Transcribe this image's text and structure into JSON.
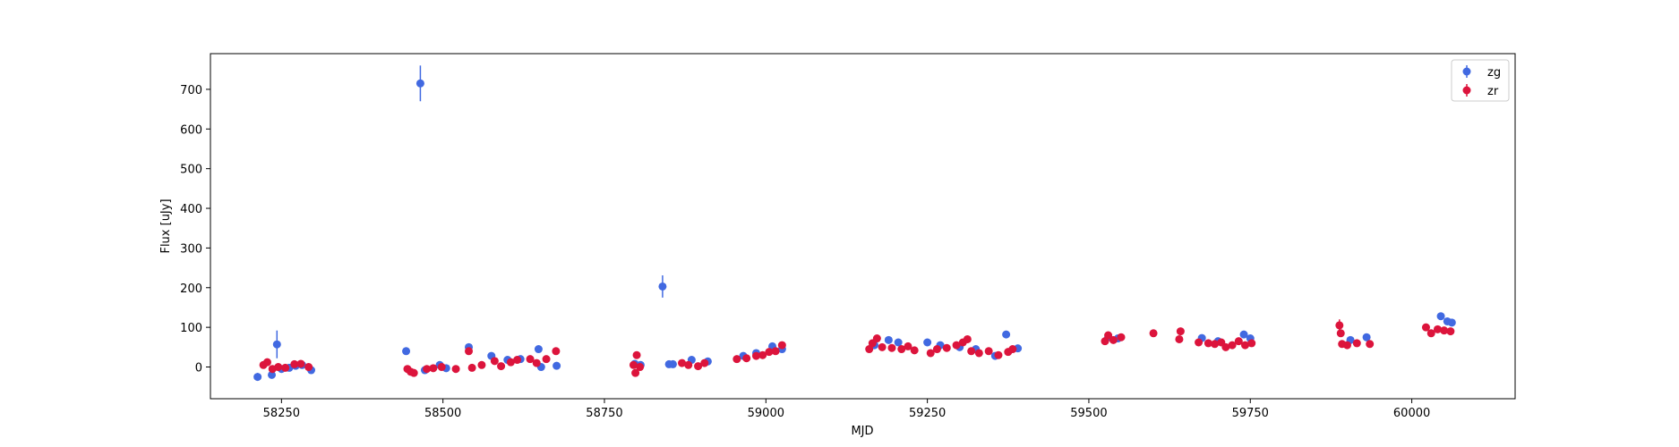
{
  "chart_data": {
    "type": "scatter",
    "title": "",
    "xlabel": "MJD",
    "ylabel": "Flux [uJy]",
    "xlim": [
      58140,
      60160
    ],
    "ylim": [
      -80,
      790
    ],
    "xticks": [
      58250,
      58500,
      58750,
      59000,
      59250,
      59500,
      59750,
      60000
    ],
    "yticks": [
      0,
      100,
      200,
      300,
      400,
      500,
      600,
      700
    ],
    "grid": false,
    "legend_position": "top-right",
    "series": [
      {
        "name": "zg",
        "color": "#4169e1",
        "points": [
          {
            "x": 58213,
            "y": -25,
            "err": 10
          },
          {
            "x": 58235,
            "y": -20,
            "err": 8
          },
          {
            "x": 58243,
            "y": 57,
            "err": 35
          },
          {
            "x": 58250,
            "y": -5,
            "err": 6
          },
          {
            "x": 58262,
            "y": -2,
            "err": 6
          },
          {
            "x": 58272,
            "y": 3,
            "err": 6
          },
          {
            "x": 58282,
            "y": 5,
            "err": 5
          },
          {
            "x": 58296,
            "y": -8,
            "err": 6
          },
          {
            "x": 58443,
            "y": 40,
            "err": 6
          },
          {
            "x": 58465,
            "y": 715,
            "err": 45
          },
          {
            "x": 58472,
            "y": -8,
            "err": 6
          },
          {
            "x": 58495,
            "y": 5,
            "err": 5
          },
          {
            "x": 58505,
            "y": -3,
            "err": 5
          },
          {
            "x": 58540,
            "y": 50,
            "err": 8
          },
          {
            "x": 58575,
            "y": 28,
            "err": 5
          },
          {
            "x": 58600,
            "y": 18,
            "err": 5
          },
          {
            "x": 58620,
            "y": 20,
            "err": 5
          },
          {
            "x": 58648,
            "y": 45,
            "err": 6
          },
          {
            "x": 58652,
            "y": 0,
            "err": 5
          },
          {
            "x": 58676,
            "y": 3,
            "err": 5
          },
          {
            "x": 58797,
            "y": 8,
            "err": 5
          },
          {
            "x": 58806,
            "y": 5,
            "err": 5
          },
          {
            "x": 58840,
            "y": 203,
            "err": 28
          },
          {
            "x": 58850,
            "y": 7,
            "err": 5
          },
          {
            "x": 58856,
            "y": 7,
            "err": 5
          },
          {
            "x": 58885,
            "y": 18,
            "err": 5
          },
          {
            "x": 58910,
            "y": 14,
            "err": 5
          },
          {
            "x": 58965,
            "y": 28,
            "err": 5
          },
          {
            "x": 58985,
            "y": 35,
            "err": 5
          },
          {
            "x": 59010,
            "y": 52,
            "err": 5
          },
          {
            "x": 59025,
            "y": 45,
            "err": 5
          },
          {
            "x": 59168,
            "y": 55,
            "err": 5
          },
          {
            "x": 59190,
            "y": 68,
            "err": 5
          },
          {
            "x": 59205,
            "y": 62,
            "err": 5
          },
          {
            "x": 59250,
            "y": 62,
            "err": 5
          },
          {
            "x": 59270,
            "y": 55,
            "err": 5
          },
          {
            "x": 59300,
            "y": 50,
            "err": 5
          },
          {
            "x": 59325,
            "y": 45,
            "err": 5
          },
          {
            "x": 59355,
            "y": 28,
            "err": 5
          },
          {
            "x": 59372,
            "y": 82,
            "err": 6
          },
          {
            "x": 59390,
            "y": 47,
            "err": 5
          },
          {
            "x": 59530,
            "y": 75,
            "err": 5
          },
          {
            "x": 59545,
            "y": 72,
            "err": 5
          },
          {
            "x": 59675,
            "y": 73,
            "err": 5
          },
          {
            "x": 59700,
            "y": 65,
            "err": 5
          },
          {
            "x": 59740,
            "y": 82,
            "err": 6
          },
          {
            "x": 59750,
            "y": 72,
            "err": 5
          },
          {
            "x": 59905,
            "y": 68,
            "err": 5
          },
          {
            "x": 59930,
            "y": 75,
            "err": 5
          },
          {
            "x": 60045,
            "y": 128,
            "err": 6
          },
          {
            "x": 60055,
            "y": 115,
            "err": 6
          },
          {
            "x": 60062,
            "y": 112,
            "err": 6
          }
        ]
      },
      {
        "name": "zr",
        "color": "#dc143c",
        "points": [
          {
            "x": 58222,
            "y": 5,
            "err": 5
          },
          {
            "x": 58228,
            "y": 12,
            "err": 5
          },
          {
            "x": 58236,
            "y": -5,
            "err": 5
          },
          {
            "x": 58245,
            "y": 0,
            "err": 5
          },
          {
            "x": 58256,
            "y": -2,
            "err": 5
          },
          {
            "x": 58270,
            "y": 7,
            "err": 5
          },
          {
            "x": 58280,
            "y": 8,
            "err": 5
          },
          {
            "x": 58292,
            "y": 0,
            "err": 5
          },
          {
            "x": 58445,
            "y": -5,
            "err": 5
          },
          {
            "x": 58450,
            "y": -12,
            "err": 5
          },
          {
            "x": 58455,
            "y": -15,
            "err": 5
          },
          {
            "x": 58475,
            "y": -5,
            "err": 5
          },
          {
            "x": 58485,
            "y": -3,
            "err": 5
          },
          {
            "x": 58498,
            "y": 0,
            "err": 5
          },
          {
            "x": 58520,
            "y": -5,
            "err": 5
          },
          {
            "x": 58540,
            "y": 40,
            "err": 6
          },
          {
            "x": 58545,
            "y": -2,
            "err": 5
          },
          {
            "x": 58560,
            "y": 5,
            "err": 5
          },
          {
            "x": 58580,
            "y": 15,
            "err": 5
          },
          {
            "x": 58590,
            "y": 2,
            "err": 5
          },
          {
            "x": 58605,
            "y": 12,
            "err": 5
          },
          {
            "x": 58615,
            "y": 18,
            "err": 5
          },
          {
            "x": 58635,
            "y": 20,
            "err": 5
          },
          {
            "x": 58645,
            "y": 10,
            "err": 5
          },
          {
            "x": 58660,
            "y": 20,
            "err": 5
          },
          {
            "x": 58675,
            "y": 40,
            "err": 6
          },
          {
            "x": 58795,
            "y": 5,
            "err": 5
          },
          {
            "x": 58798,
            "y": -15,
            "err": 5
          },
          {
            "x": 58800,
            "y": 30,
            "err": 6
          },
          {
            "x": 58805,
            "y": 0,
            "err": 5
          },
          {
            "x": 58870,
            "y": 10,
            "err": 5
          },
          {
            "x": 58880,
            "y": 5,
            "err": 5
          },
          {
            "x": 58895,
            "y": 2,
            "err": 5
          },
          {
            "x": 58905,
            "y": 10,
            "err": 5
          },
          {
            "x": 58955,
            "y": 20,
            "err": 5
          },
          {
            "x": 58970,
            "y": 22,
            "err": 5
          },
          {
            "x": 58985,
            "y": 28,
            "err": 5
          },
          {
            "x": 58995,
            "y": 30,
            "err": 5
          },
          {
            "x": 59005,
            "y": 38,
            "err": 5
          },
          {
            "x": 59015,
            "y": 40,
            "err": 5
          },
          {
            "x": 59025,
            "y": 55,
            "err": 5
          },
          {
            "x": 59160,
            "y": 45,
            "err": 5
          },
          {
            "x": 59165,
            "y": 60,
            "err": 5
          },
          {
            "x": 59172,
            "y": 72,
            "err": 5
          },
          {
            "x": 59180,
            "y": 50,
            "err": 5
          },
          {
            "x": 59195,
            "y": 48,
            "err": 5
          },
          {
            "x": 59210,
            "y": 45,
            "err": 5
          },
          {
            "x": 59220,
            "y": 52,
            "err": 5
          },
          {
            "x": 59230,
            "y": 42,
            "err": 5
          },
          {
            "x": 59255,
            "y": 35,
            "err": 5
          },
          {
            "x": 59265,
            "y": 45,
            "err": 5
          },
          {
            "x": 59280,
            "y": 48,
            "err": 5
          },
          {
            "x": 59295,
            "y": 55,
            "err": 5
          },
          {
            "x": 59305,
            "y": 62,
            "err": 5
          },
          {
            "x": 59312,
            "y": 70,
            "err": 5
          },
          {
            "x": 59318,
            "y": 40,
            "err": 5
          },
          {
            "x": 59330,
            "y": 35,
            "err": 5
          },
          {
            "x": 59345,
            "y": 40,
            "err": 5
          },
          {
            "x": 59360,
            "y": 30,
            "err": 5
          },
          {
            "x": 59375,
            "y": 38,
            "err": 5
          },
          {
            "x": 59382,
            "y": 45,
            "err": 5
          },
          {
            "x": 59525,
            "y": 65,
            "err": 5
          },
          {
            "x": 59530,
            "y": 80,
            "err": 5
          },
          {
            "x": 59538,
            "y": 68,
            "err": 5
          },
          {
            "x": 59550,
            "y": 75,
            "err": 5
          },
          {
            "x": 59600,
            "y": 85,
            "err": 5
          },
          {
            "x": 59640,
            "y": 70,
            "err": 5
          },
          {
            "x": 59642,
            "y": 90,
            "err": 5
          },
          {
            "x": 59670,
            "y": 62,
            "err": 5
          },
          {
            "x": 59685,
            "y": 60,
            "err": 5
          },
          {
            "x": 59695,
            "y": 58,
            "err": 5
          },
          {
            "x": 59705,
            "y": 62,
            "err": 5
          },
          {
            "x": 59712,
            "y": 50,
            "err": 5
          },
          {
            "x": 59722,
            "y": 55,
            "err": 5
          },
          {
            "x": 59732,
            "y": 65,
            "err": 5
          },
          {
            "x": 59742,
            "y": 55,
            "err": 5
          },
          {
            "x": 59752,
            "y": 60,
            "err": 5
          },
          {
            "x": 59888,
            "y": 105,
            "err": 15
          },
          {
            "x": 59890,
            "y": 85,
            "err": 8
          },
          {
            "x": 59892,
            "y": 58,
            "err": 5
          },
          {
            "x": 59900,
            "y": 55,
            "err": 5
          },
          {
            "x": 59915,
            "y": 60,
            "err": 5
          },
          {
            "x": 59935,
            "y": 58,
            "err": 5
          },
          {
            "x": 60022,
            "y": 100,
            "err": 5
          },
          {
            "x": 60030,
            "y": 85,
            "err": 5
          },
          {
            "x": 60040,
            "y": 95,
            "err": 5
          },
          {
            "x": 60050,
            "y": 92,
            "err": 5
          },
          {
            "x": 60060,
            "y": 90,
            "err": 5
          }
        ]
      }
    ]
  }
}
